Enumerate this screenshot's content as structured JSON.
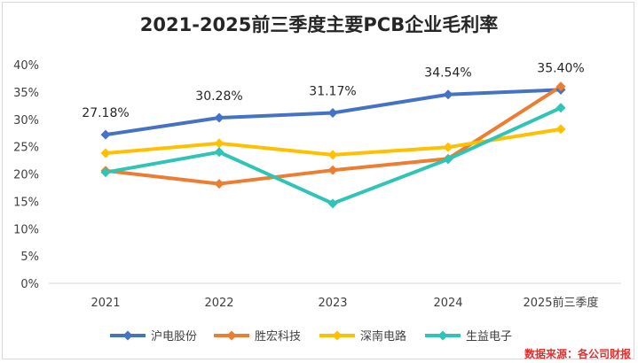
{
  "chart_data": {
    "type": "line",
    "title": "2021-2025前三季度主要PCB企业毛利率",
    "categories": [
      "2021",
      "2022",
      "2023",
      "2024",
      "2025前三季度"
    ],
    "y_ticks": [
      "0%",
      "5%",
      "10%",
      "15%",
      "20%",
      "25%",
      "30%",
      "35%",
      "40%"
    ],
    "ylim": [
      0,
      40
    ],
    "y_unit": "%",
    "grid": false,
    "legend_position": "bottom",
    "series": [
      {
        "name": "沪电股份",
        "color": "#4472c4",
        "values": [
          27.18,
          30.28,
          31.17,
          34.54,
          35.4
        ],
        "labels": [
          "27.18%",
          "30.28%",
          "31.17%",
          "34.54%",
          "35.40%"
        ]
      },
      {
        "name": "胜宏科技",
        "color": "#ed7d31",
        "values": [
          20.6,
          18.2,
          20.7,
          22.8,
          36.0
        ]
      },
      {
        "name": "深南电路",
        "color": "#ffc000",
        "values": [
          23.8,
          25.6,
          23.5,
          24.9,
          28.2
        ]
      },
      {
        "name": "生益电子",
        "color": "#2ec4b6",
        "values": [
          20.3,
          24.0,
          14.6,
          22.7,
          32.1
        ]
      }
    ],
    "source_note": "数据来源：各公司财报"
  }
}
